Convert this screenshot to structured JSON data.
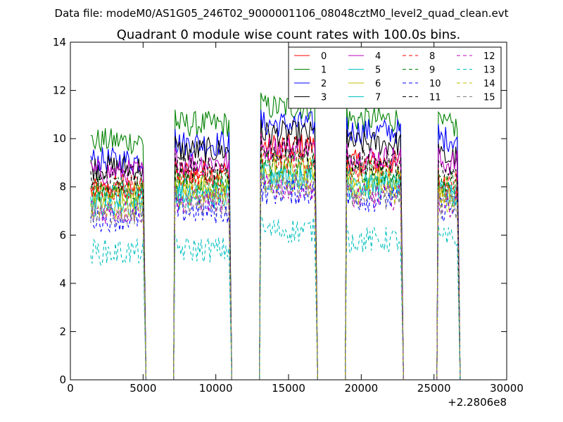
{
  "figure": {
    "suptitle": "Data file: modeM0/AS1G05_246T02_9000001106_08048cztM0_level2_quad_clean.evt",
    "x_offset_text": "+2.2806e8"
  },
  "chart_data": {
    "type": "line",
    "title": "Quadrant 0 module wise count rates with 100.0s bins.",
    "xlabel": "",
    "ylabel": "",
    "xlim": [
      0,
      30000
    ],
    "ylim": [
      0,
      14
    ],
    "x_ticks": [
      0,
      5000,
      10000,
      15000,
      20000,
      25000,
      30000
    ],
    "y_ticks": [
      0,
      2,
      4,
      6,
      8,
      10,
      12,
      14
    ],
    "x_tick_labels": [
      "0",
      "5000",
      "10000",
      "15000",
      "20000",
      "25000",
      "30000"
    ],
    "y_tick_labels": [
      "0",
      "2",
      "4",
      "6",
      "8",
      "10",
      "12",
      "14"
    ],
    "grid": false,
    "legend_position": "top-right",
    "legend_columns": 4,
    "segments": [
      {
        "start": 1400,
        "end": 5000
      },
      {
        "start": 7200,
        "end": 10900
      },
      {
        "start": 13100,
        "end": 16800
      },
      {
        "start": 19000,
        "end": 22700
      },
      {
        "start": 25300,
        "end": 26600
      }
    ],
    "gaps_zero": [
      [
        5200,
        7100
      ],
      [
        11100,
        13000
      ],
      [
        16900,
        18900
      ],
      [
        22800,
        25200
      ]
    ],
    "series": [
      {
        "name": "0",
        "color": "#ff0000",
        "dashed": false,
        "levels": [
          7.8,
          8.6,
          9.7,
          9.0,
          8.0
        ]
      },
      {
        "name": "1",
        "color": "#008000",
        "dashed": false,
        "levels": [
          9.9,
          10.6,
          11.3,
          10.8,
          10.5
        ]
      },
      {
        "name": "2",
        "color": "#0000ff",
        "dashed": false,
        "levels": [
          9.1,
          9.8,
          10.6,
          10.3,
          10.0
        ]
      },
      {
        "name": "3",
        "color": "#000000",
        "dashed": false,
        "levels": [
          8.8,
          9.5,
          10.2,
          9.8,
          9.2
        ]
      },
      {
        "name": "4",
        "color": "#bf00bf",
        "dashed": false,
        "levels": [
          8.6,
          9.0,
          9.6,
          9.2,
          9.0
        ]
      },
      {
        "name": "5",
        "color": "#00bfbf",
        "dashed": false,
        "levels": [
          7.6,
          7.9,
          8.6,
          8.2,
          7.8
        ]
      },
      {
        "name": "6",
        "color": "#bfbf00",
        "dashed": false,
        "levels": [
          7.7,
          8.0,
          8.8,
          8.3,
          7.9
        ]
      },
      {
        "name": "7",
        "color": "#00bfbf",
        "dashed": false,
        "levels": [
          7.3,
          7.6,
          8.4,
          8.0,
          7.6
        ]
      },
      {
        "name": "8",
        "color": "#ff0000",
        "dashed": true,
        "levels": [
          8.0,
          8.4,
          9.1,
          8.7,
          8.2
        ]
      },
      {
        "name": "9",
        "color": "#008000",
        "dashed": true,
        "levels": [
          7.9,
          8.3,
          9.0,
          8.6,
          8.1
        ]
      },
      {
        "name": "10",
        "color": "#0000ff",
        "dashed": true,
        "levels": [
          6.7,
          7.0,
          7.8,
          7.5,
          7.1
        ]
      },
      {
        "name": "11",
        "color": "#000000",
        "dashed": true,
        "levels": [
          8.3,
          8.8,
          9.5,
          9.0,
          8.5
        ]
      },
      {
        "name": "12",
        "color": "#bf00bf",
        "dashed": true,
        "levels": [
          7.0,
          7.4,
          8.0,
          7.6,
          7.3
        ]
      },
      {
        "name": "13",
        "color": "#00bfbf",
        "dashed": true,
        "levels": [
          5.3,
          5.4,
          6.2,
          5.8,
          5.8
        ]
      },
      {
        "name": "14",
        "color": "#bfbf00",
        "dashed": true,
        "levels": [
          7.2,
          7.6,
          8.2,
          7.8,
          7.4
        ]
      },
      {
        "name": "15",
        "color": "#808080",
        "dashed": true,
        "levels": [
          6.9,
          7.3,
          8.0,
          7.6,
          7.2
        ]
      }
    ]
  }
}
